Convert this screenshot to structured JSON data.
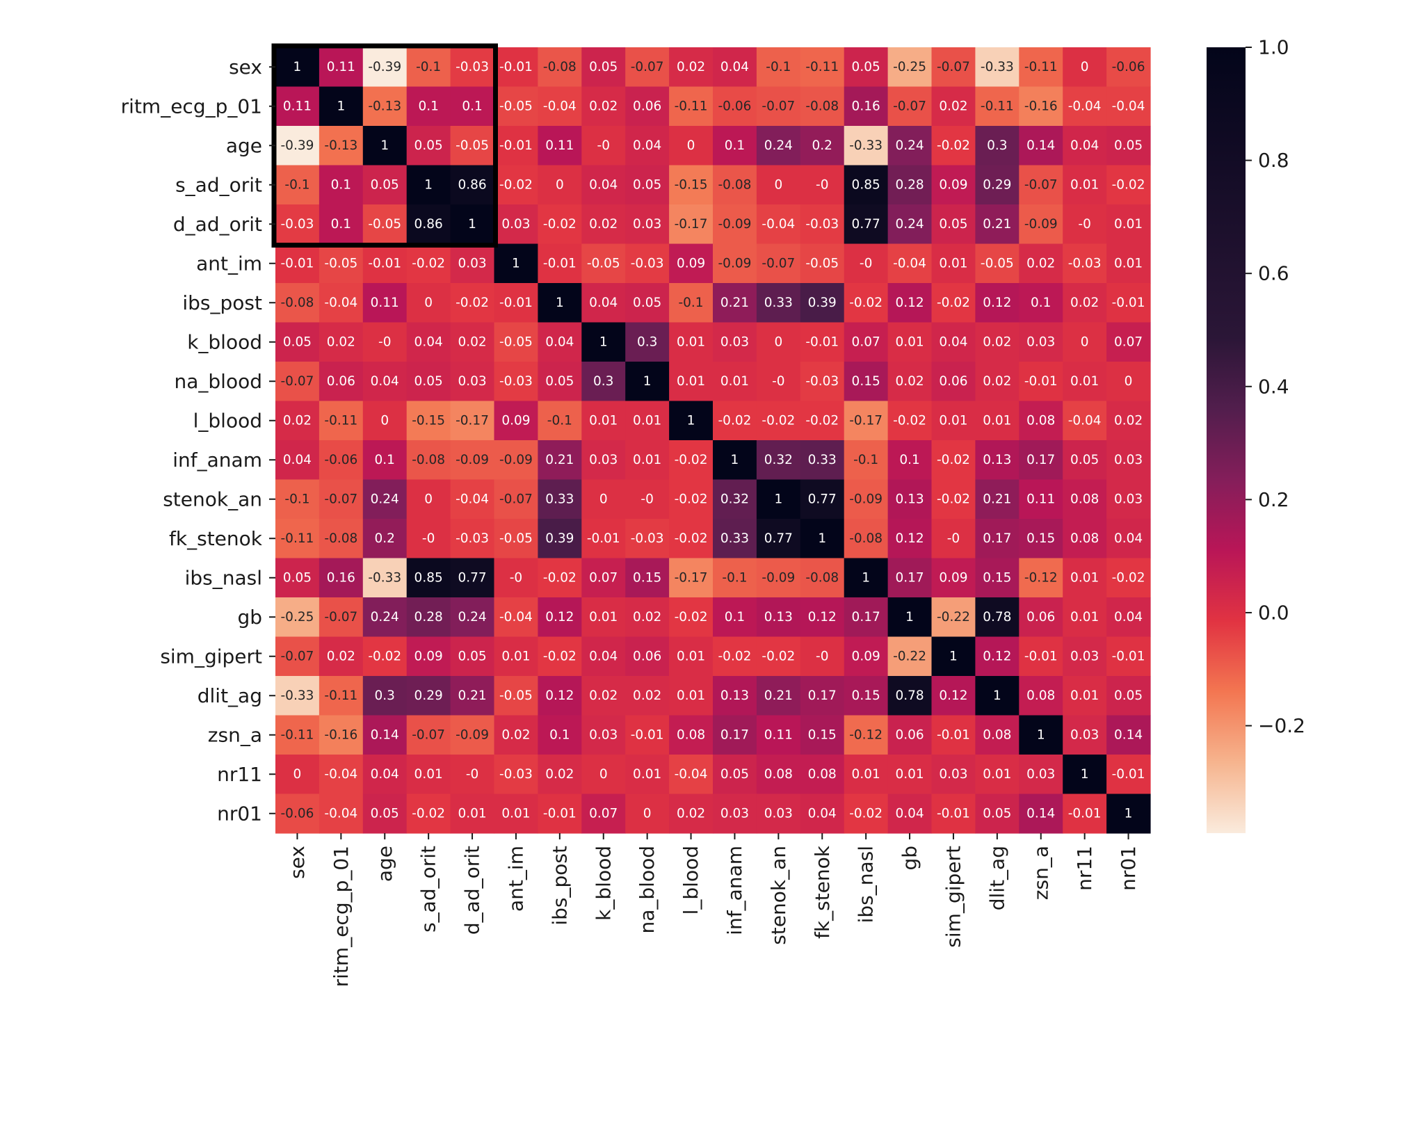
{
  "chart_data": {
    "type": "heatmap",
    "title": "",
    "xlabel": "",
    "ylabel": "",
    "colormap": "rocket_r",
    "vmin": -0.39,
    "vmax": 1.0,
    "variables": [
      "sex",
      "ritm_ecg_p_01",
      "age",
      "s_ad_orit",
      "d_ad_orit",
      "ant_im",
      "ibs_post",
      "k_blood",
      "na_blood",
      "l_blood",
      "inf_anam",
      "stenok_an",
      "fk_stenok",
      "ibs_nasl",
      "gb",
      "sim_gipert",
      "dlit_ag",
      "zsn_a",
      "nr11",
      "nr01"
    ],
    "matrix": [
      [
        1,
        0.11,
        -0.39,
        -0.1,
        -0.03,
        -0.01,
        -0.08,
        0.05,
        -0.07,
        0.02,
        0.04,
        -0.1,
        -0.11,
        0.05,
        -0.25,
        -0.07,
        -0.33,
        -0.11,
        0,
        -0.06
      ],
      [
        0.11,
        1,
        -0.13,
        0.1,
        0.1,
        -0.05,
        -0.04,
        0.02,
        0.06,
        -0.11,
        -0.06,
        -0.07,
        -0.08,
        0.16,
        -0.07,
        0.02,
        -0.11,
        -0.16,
        -0.04,
        -0.04
      ],
      [
        -0.39,
        -0.13,
        1,
        0.05,
        -0.05,
        -0.01,
        0.11,
        0,
        0.04,
        0,
        0.1,
        0.24,
        0.2,
        -0.33,
        0.24,
        -0.02,
        0.3,
        0.14,
        0.04,
        0.05
      ],
      [
        -0.1,
        0.1,
        0.05,
        1,
        0.86,
        -0.02,
        0,
        0.04,
        0.05,
        -0.15,
        -0.08,
        0,
        0,
        0.85,
        0.28,
        0.09,
        0.29,
        -0.07,
        0.01,
        -0.02
      ],
      [
        -0.03,
        0.1,
        -0.05,
        0.86,
        1,
        0.03,
        -0.02,
        0.02,
        0.03,
        -0.17,
        -0.09,
        -0.04,
        -0.03,
        0.77,
        0.24,
        0.05,
        0.21,
        -0.09,
        0,
        0.01
      ],
      [
        -0.01,
        -0.05,
        -0.01,
        -0.02,
        0.03,
        1,
        -0.01,
        -0.05,
        -0.03,
        0.09,
        -0.09,
        -0.07,
        -0.05,
        0,
        -0.04,
        0.01,
        -0.05,
        0.02,
        -0.03,
        0.01
      ],
      [
        -0.08,
        -0.04,
        0.11,
        0,
        -0.02,
        -0.01,
        1,
        0.04,
        0.05,
        -0.1,
        0.21,
        0.33,
        0.39,
        -0.02,
        0.12,
        -0.02,
        0.12,
        0.1,
        0.02,
        -0.01
      ],
      [
        0.05,
        0.02,
        0,
        0.04,
        0.02,
        -0.05,
        0.04,
        1,
        0.3,
        0.01,
        0.03,
        0,
        -0.01,
        0.07,
        0.01,
        0.04,
        0.02,
        0.03,
        0,
        0.07
      ],
      [
        -0.07,
        0.06,
        0.04,
        0.05,
        0.03,
        -0.03,
        0.05,
        0.3,
        1,
        0.01,
        0.01,
        0,
        -0.03,
        0.15,
        0.02,
        0.06,
        0.02,
        -0.01,
        0.01,
        0
      ],
      [
        0.02,
        -0.11,
        0,
        -0.15,
        -0.17,
        0.09,
        -0.1,
        0.01,
        0.01,
        1,
        -0.02,
        -0.02,
        -0.02,
        -0.17,
        -0.02,
        0.01,
        0.01,
        0.08,
        -0.04,
        0.02
      ],
      [
        0.04,
        -0.06,
        0.1,
        -0.08,
        -0.09,
        -0.09,
        0.21,
        0.03,
        0.01,
        -0.02,
        1,
        0.32,
        0.33,
        -0.1,
        0.1,
        -0.02,
        0.13,
        0.17,
        0.05,
        0.03
      ],
      [
        -0.1,
        -0.07,
        0.24,
        0,
        -0.04,
        -0.07,
        0.33,
        0,
        0,
        -0.02,
        0.32,
        1,
        0.77,
        -0.09,
        0.13,
        -0.02,
        0.21,
        0.11,
        0.08,
        0.03
      ],
      [
        -0.11,
        -0.08,
        0.2,
        0,
        -0.03,
        -0.05,
        0.39,
        -0.01,
        -0.03,
        -0.02,
        0.33,
        0.77,
        1,
        -0.08,
        0.12,
        0,
        0.17,
        0.15,
        0.08,
        0.04
      ],
      [
        0.05,
        0.16,
        -0.33,
        0.85,
        0.77,
        0,
        -0.02,
        0.07,
        0.15,
        -0.17,
        -0.1,
        -0.09,
        -0.08,
        1,
        0.17,
        0.09,
        0.15,
        -0.12,
        0.01,
        -0.02
      ],
      [
        -0.25,
        -0.07,
        0.24,
        0.28,
        0.24,
        -0.04,
        0.12,
        0.01,
        0.02,
        -0.02,
        0.1,
        0.13,
        0.12,
        0.17,
        1,
        -0.22,
        0.78,
        0.06,
        0.01,
        0.04
      ],
      [
        -0.07,
        0.02,
        -0.02,
        0.09,
        0.05,
        0.01,
        -0.02,
        0.04,
        0.06,
        0.01,
        -0.02,
        -0.02,
        0,
        0.09,
        -0.22,
        1,
        0.12,
        -0.01,
        0.03,
        -0.01
      ],
      [
        -0.33,
        -0.11,
        0.3,
        0.29,
        0.21,
        -0.05,
        0.12,
        0.02,
        0.02,
        0.01,
        0.13,
        0.21,
        0.17,
        0.15,
        0.78,
        0.12,
        1,
        0.08,
        0.01,
        0.05
      ],
      [
        -0.11,
        -0.16,
        0.14,
        -0.07,
        -0.09,
        0.02,
        0.1,
        0.03,
        -0.01,
        0.08,
        0.17,
        0.11,
        0.15,
        -0.12,
        0.06,
        -0.01,
        0.08,
        1,
        0.03,
        0.14
      ],
      [
        0,
        -0.04,
        0.04,
        0.01,
        0,
        -0.03,
        0.02,
        0,
        0.01,
        -0.04,
        0.05,
        0.08,
        0.08,
        0.01,
        0.01,
        0.03,
        0.01,
        0.03,
        1,
        -0.01
      ],
      [
        -0.06,
        -0.04,
        0.05,
        -0.02,
        0.01,
        0.01,
        -0.01,
        0.07,
        0,
        0.02,
        0.03,
        0.03,
        0.04,
        -0.02,
        0.04,
        -0.01,
        0.05,
        0.14,
        -0.01,
        1
      ]
    ],
    "highlight_box": {
      "from_index": 0,
      "to_index": 4
    },
    "colorbar": {
      "ticks": [
        1.0,
        0.8,
        0.6,
        0.4,
        0.2,
        0.0,
        -0.2
      ],
      "tick_labels": [
        "1.0",
        "0.8",
        "0.6",
        "0.4",
        "0.2",
        "0.0",
        "−0.2"
      ]
    },
    "grid": false,
    "legend": "colorbar-right"
  }
}
